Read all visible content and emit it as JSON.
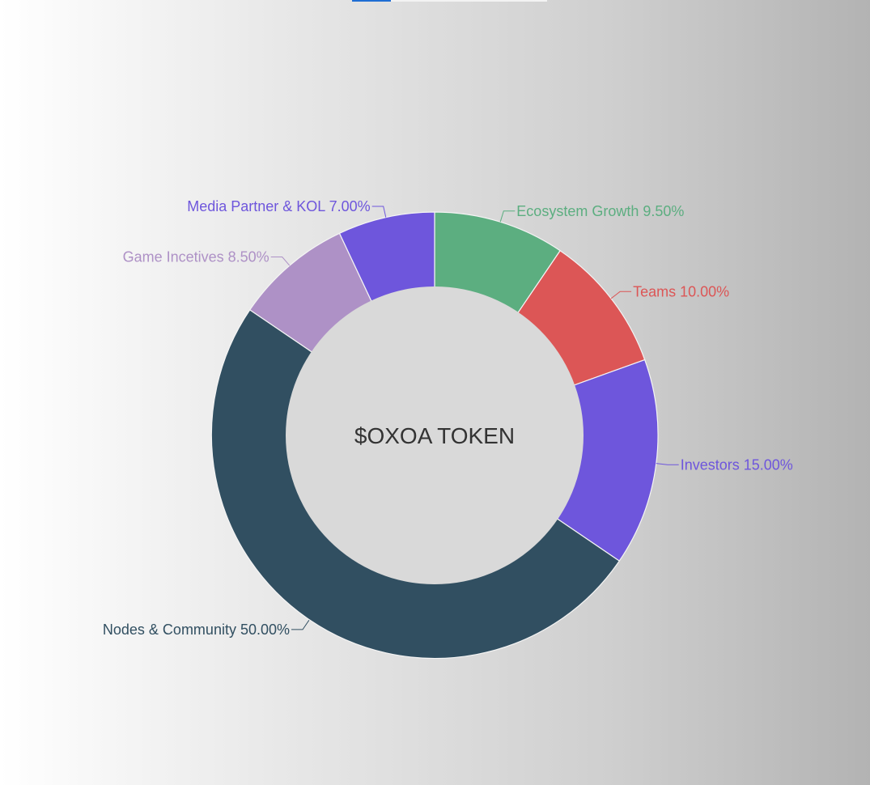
{
  "chart_data": {
    "type": "pie",
    "title": "",
    "center_label": "$OXOA TOKEN",
    "slices": [
      {
        "name": "Ecosystem Growth",
        "value": 9.5,
        "label": "Ecosystem Growth 9.50%",
        "color": "#5cae80"
      },
      {
        "name": "Teams",
        "value": 10.0,
        "label": "Teams 10.00%",
        "color": "#dc5656"
      },
      {
        "name": "Investors",
        "value": 15.0,
        "label": "Investors 15.00%",
        "color": "#6e56dc"
      },
      {
        "name": "Nodes & Community",
        "value": 50.0,
        "label": "Nodes & Community 50.00%",
        "color": "#314f61"
      },
      {
        "name": "Game Incetives",
        "value": 8.5,
        "label": "Game Incetives 8.50%",
        "color": "#ae91c6"
      },
      {
        "name": "Media Partner & KOL",
        "value": 7.0,
        "label": "Media Partner & KOL 7.00%",
        "color": "#6e56dc"
      }
    ]
  },
  "colors": {
    "background_start": "#ffffff",
    "background_end": "#b3b3b3",
    "hole": "#d9d9d9",
    "top_strip_blue": "#1f6ed4"
  }
}
